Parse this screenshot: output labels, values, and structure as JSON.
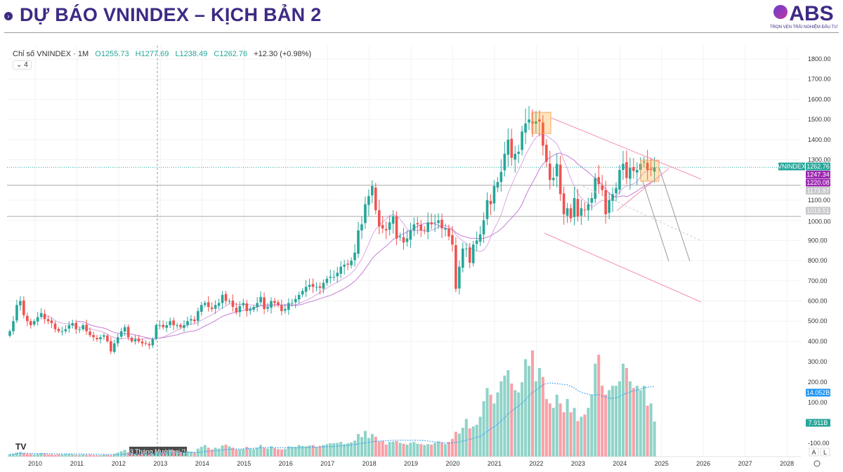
{
  "header": {
    "title": "DỰ BÁO VNINDEX – KỊCH BẢN 2",
    "logo_text": "ABS",
    "logo_tagline": "TRỌN VẸN TRẢI NGHIỆM ĐẦU TƯ"
  },
  "legend": {
    "symbol": "Chỉ số VNINDEX · 1M",
    "open": "O1255.73",
    "high": "H1277.69",
    "low": "L1238.49",
    "close": "C1262.76",
    "change": "+12.30 (+0.98%)",
    "indicators_count": "⌄ 4"
  },
  "crosshair_label": "03 Tháng Mười hai '12",
  "price_labels": {
    "symbol": "VNINDEX",
    "last": "1262.76",
    "ma1": "1247.34",
    "ma2": "1220.08",
    "line1": "1173.97",
    "line2": "1019.51",
    "vol_ma": "14.052B",
    "vol": "7.911B"
  },
  "scale_buttons": [
    "A",
    "L"
  ],
  "colors": {
    "up": "#26a69a",
    "down": "#ef5350",
    "vol_up": "#8fd3c8",
    "vol_down": "#f7a1a8",
    "ma": "#c77dd6",
    "trend": "#f48fb1",
    "accent": "#3e2a84"
  },
  "chart_data": {
    "type": "candlestick",
    "title": "Chỉ số VNINDEX · 1M",
    "start": "2009-07",
    "ylim": [
      300,
      1850
    ],
    "y_ticks": [
      1800,
      1700,
      1600,
      1500,
      1400,
      1300,
      1100,
      1000,
      900,
      800,
      700,
      600,
      500,
      400
    ],
    "vol_ticks": [
      "300.00",
      "200.00",
      "100.00",
      "-100.00"
    ],
    "x_ticks": [
      "2010",
      "2011",
      "2012",
      "2013",
      "2014",
      "2015",
      "2016",
      "2017",
      "2018",
      "2019",
      "2020",
      "2021",
      "2022",
      "2023",
      "2024",
      "2025",
      "2026",
      "2027",
      "2028"
    ],
    "closes": [
      450,
      500,
      580,
      600,
      530,
      500,
      480,
      500,
      520,
      540,
      510,
      500,
      490,
      460,
      450,
      450,
      460,
      480,
      490,
      460,
      460,
      480,
      450,
      430,
      420,
      410,
      420,
      430,
      400,
      350,
      390,
      420,
      450,
      470,
      420,
      400,
      410,
      400,
      390,
      390,
      380,
      410,
      480,
      480,
      470,
      480,
      500,
      480,
      480,
      470,
      480,
      500,
      510,
      500,
      550,
      580,
      590,
      570,
      560,
      580,
      590,
      630,
      600,
      600,
      570,
      545,
      575,
      590,
      550,
      560,
      570,
      590,
      620,
      560,
      570,
      600,
      590,
      580,
      550,
      560,
      590,
      590,
      610,
      630,
      650,
      670,
      680,
      670,
      670,
      665,
      690,
      710,
      720,
      720,
      740,
      770,
      780,
      780,
      800,
      840,
      950,
      980,
      1080,
      1120,
      1170,
      1050,
      970,
      960,
      950,
      990,
      1020,
      910,
      920,
      890,
      910,
      950,
      980,
      980,
      950,
      950,
      990,
      980,
      990,
      1000,
      960,
      960,
      920,
      880,
      660,
      770,
      860,
      860,
      790,
      880,
      900,
      930,
      1000,
      1100,
      1080,
      1170,
      1190,
      1240,
      1330,
      1400,
      1310,
      1330,
      1340,
      1440,
      1480,
      1500,
      1480,
      1490,
      1490,
      1370,
      1290,
      1200,
      1210,
      1280,
      1130,
      1030,
      1060,
      1010,
      1110,
      1020,
      1060,
      1050,
      1080,
      1110,
      1210,
      1180,
      1150,
      1030,
      1100,
      1130,
      1160,
      1250,
      1280,
      1210,
      1260,
      1245,
      1250,
      1280,
      1290,
      1250,
      1250,
      1262.76
    ],
    "volumes_b": [
      0.5,
      0.6,
      0.9,
      1,
      0.8,
      0.6,
      0.6,
      0.5,
      0.6,
      0.8,
      0.7,
      0.5,
      0.5,
      0.4,
      0.5,
      0.5,
      0.6,
      0.6,
      0.5,
      0.4,
      0.4,
      0.5,
      0.4,
      0.4,
      0.3,
      0.3,
      0.3,
      0.4,
      0.4,
      0.3,
      0.6,
      0.9,
      1.2,
      1.5,
      1,
      0.7,
      0.6,
      0.5,
      0.7,
      0.6,
      0.5,
      0.6,
      1,
      0.9,
      0.9,
      1,
      1.5,
      1.3,
      1,
      1.1,
      0.9,
      1.2,
      1.1,
      1,
      1.8,
      2.2,
      2.6,
      2,
      1.6,
      2,
      1.8,
      2.5,
      2.7,
      2.3,
      2,
      1.6,
      1.6,
      1.7,
      2.2,
      1.8,
      1.7,
      2,
      2.6,
      2,
      1.8,
      2.3,
      1.9,
      1.7,
      1.6,
      1.7,
      2.3,
      2.2,
      2.2,
      2.6,
      2.4,
      2.3,
      2.5,
      2.6,
      2.2,
      2.4,
      2.6,
      2.8,
      3,
      3,
      3.1,
      3.3,
      2.8,
      3,
      3.2,
      3.6,
      5.1,
      4.4,
      5.8,
      4.2,
      5.1,
      4.5,
      3.4,
      3.5,
      2.7,
      3.3,
      3.4,
      3.5,
      3.1,
      2.9,
      2.7,
      3.1,
      3.3,
      2.9,
      2.8,
      2.6,
      2.8,
      2.7,
      3.1,
      3.4,
      3.2,
      2.8,
      3.3,
      4,
      5.6,
      5.2,
      6.5,
      8.5,
      6.4,
      6.8,
      7.2,
      9,
      12.5,
      15.5,
      14,
      12,
      14.5,
      17,
      18.3,
      19.5,
      16.5,
      15,
      14.5,
      16.8,
      22,
      20.5,
      24,
      17,
      20,
      18,
      13,
      12,
      11,
      14,
      12,
      10,
      13,
      10,
      11,
      8,
      9,
      9.5,
      11,
      14,
      21,
      23,
      16,
      14,
      15,
      16,
      16,
      17,
      21,
      20,
      17,
      15.5,
      16,
      15,
      16,
      11.5,
      12,
      7.911
    ]
  }
}
